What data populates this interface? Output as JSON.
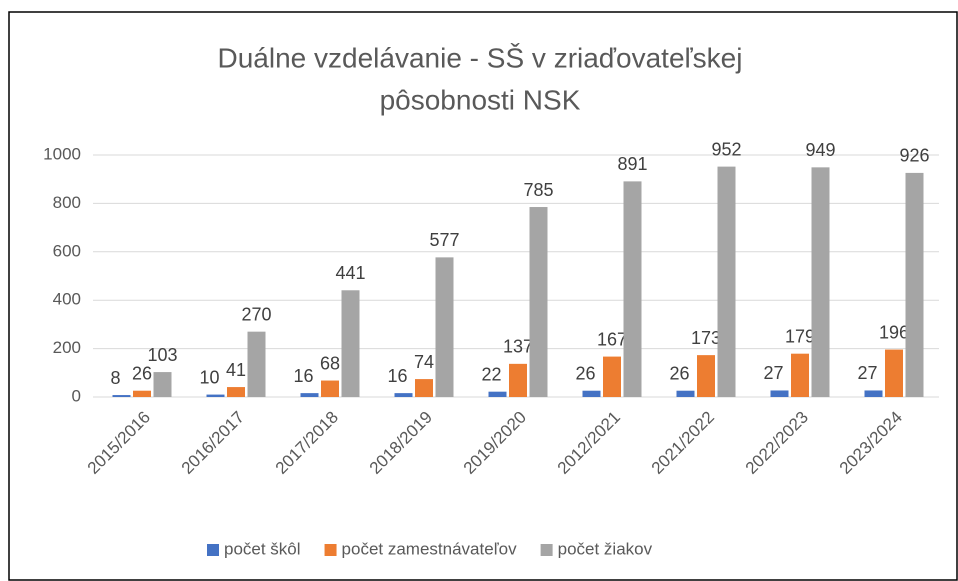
{
  "chart_data": {
    "type": "bar",
    "title": [
      "Duálne vzdelávanie - SŠ v zriaďovateľskej",
      "pôsobnosti NSK"
    ],
    "categories": [
      "2015/2016",
      "2016/2017",
      "2017/2018",
      "2018/2019",
      "2019/2020",
      "2012/2021",
      "2021/2022",
      "2022/2023",
      "2023/2024"
    ],
    "series": [
      {
        "name": "počet škôl",
        "color": "#4472c4",
        "values": [
          8,
          10,
          16,
          16,
          22,
          26,
          26,
          27,
          27
        ]
      },
      {
        "name": "počet zamestnávateľov",
        "color": "#ed7d31",
        "values": [
          26,
          41,
          68,
          74,
          137,
          167,
          173,
          179,
          196
        ]
      },
      {
        "name": "počet žiakov",
        "color": "#a5a5a5",
        "values": [
          103,
          270,
          441,
          577,
          785,
          891,
          952,
          949,
          926
        ]
      }
    ],
    "ylim": [
      0,
      1000
    ],
    "yticks": [
      0,
      200,
      400,
      600,
      800,
      1000
    ],
    "grid": true,
    "legend": "bottom"
  }
}
